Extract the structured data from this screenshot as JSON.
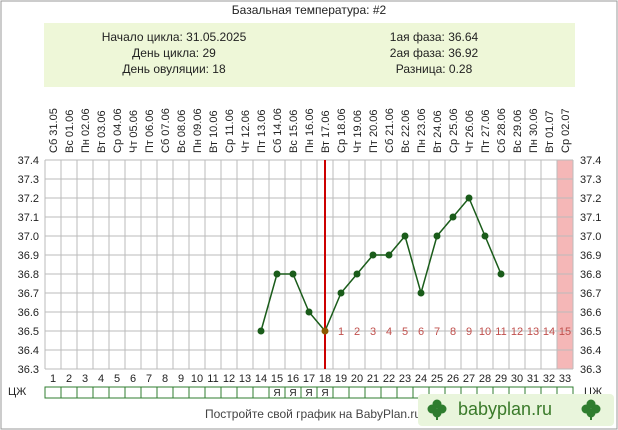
{
  "header": {
    "title": "Базальная температура: #2"
  },
  "info": {
    "left": [
      "Начало цикла: 31.05.2025",
      "День цикла: 29",
      "День овуляции: 18"
    ],
    "right": [
      "1ая фаза: 36.64",
      "2ая фаза: 36.92",
      "Разница: 0.28"
    ]
  },
  "chart_data": {
    "type": "line",
    "days": [
      1,
      2,
      3,
      4,
      5,
      6,
      7,
      8,
      9,
      10,
      11,
      12,
      13,
      14,
      15,
      16,
      17,
      18,
      19,
      20,
      21,
      22,
      23,
      24,
      25,
      26,
      27,
      28,
      29,
      30,
      31,
      32,
      33
    ],
    "dates": [
      "Сб 31.05",
      "Вс 01.06",
      "Пн 02.06",
      "Вт 03.06",
      "Ср 04.06",
      "Чт 05.06",
      "Пт 06.06",
      "Сб 07.06",
      "Вс 08.06",
      "Пн 09.06",
      "Вт 10.06",
      "Ср 11.06",
      "Чт 12.06",
      "Пт 13.06",
      "Сб 14.06",
      "Вс 15.06",
      "Пн 16.06",
      "Вт 17.06",
      "Ср 18.06",
      "Чт 19.06",
      "Пт 20.06",
      "Сб 21.06",
      "Вс 22.06",
      "Пн 23.06",
      "Вт 24.06",
      "Ср 25.06",
      "Чт 26.06",
      "Пт 27.06",
      "Сб 28.06",
      "Вс 29.06",
      "Пн 30.06",
      "Вт 01.07",
      "Ср 02.07"
    ],
    "y_ticks": [
      "37.4",
      "37.3",
      "37.2",
      "37.1",
      "37.0",
      "36.9",
      "36.8",
      "36.7",
      "36.6",
      "36.5",
      "36.4",
      "36.3"
    ],
    "ylim": [
      36.3,
      37.4
    ],
    "series": [
      {
        "values": [
          null,
          null,
          null,
          null,
          null,
          null,
          null,
          null,
          null,
          null,
          null,
          null,
          null,
          36.5,
          36.8,
          36.8,
          36.6,
          36.5,
          36.7,
          36.8,
          36.9,
          36.9,
          37.0,
          36.7,
          37.0,
          37.1,
          37.2,
          37.0,
          36.8,
          null,
          null,
          null,
          null
        ]
      }
    ],
    "ovulation_day": 18,
    "luteal_labels": [
      "1",
      "2",
      "3",
      "4",
      "5",
      "6",
      "7",
      "8",
      "9",
      "10",
      "11",
      "12",
      "13",
      "14",
      "15"
    ],
    "luteal_start_day": 19,
    "highlight_day": 33,
    "cm_label": "ЦЖ",
    "cm_values": [
      "",
      "",
      "",
      "",
      "",
      "",
      "",
      "",
      "",
      "",
      "",
      "",
      "",
      "",
      "Я",
      "Я",
      "Я",
      "Я",
      "",
      "",
      "",
      "",
      "",
      "",
      "",
      "",
      "",
      "",
      "",
      "",
      "",
      "",
      ""
    ],
    "colors": {
      "line": "#1a5c1a",
      "marker": "#1a5c1a",
      "ovulation": "#cc0000",
      "luteal": "#c0504d",
      "highlight": "#f5b7b7",
      "grid": "#bbbbbb"
    }
  },
  "footer": {
    "note": "Постройте свой график на BabyPlan.ru",
    "logo": "babyplan.ru"
  }
}
